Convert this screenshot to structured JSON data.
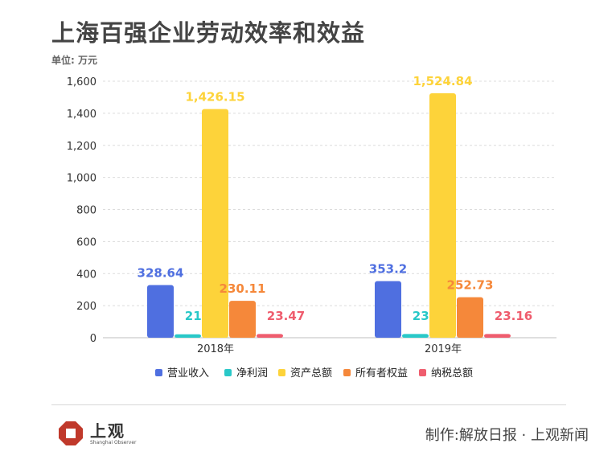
{
  "header": {
    "title": "上海百强企业劳动效率和效益",
    "unit": "单位: 万元"
  },
  "footer": {
    "logo_text": "上观",
    "logo_sub": "Shanghai Observer",
    "credit": "制作:解放日报 · 上观新闻"
  },
  "colors": {
    "series": [
      "#4f6fe0",
      "#29c8c8",
      "#fdd33a",
      "#f5883a",
      "#ef5d6e"
    ],
    "logo": "#c0392b"
  },
  "chart_data": {
    "type": "bar",
    "categories": [
      "2018年",
      "2019年"
    ],
    "series": [
      {
        "name": "营业收入",
        "values": [
          328.64,
          353.2
        ],
        "labels": [
          "328.64",
          "353.2"
        ]
      },
      {
        "name": "净利润",
        "values": [
          21.26,
          23.04
        ],
        "labels": [
          "21.26",
          "23.04"
        ]
      },
      {
        "name": "资产总额",
        "values": [
          1426.15,
          1524.84
        ],
        "labels": [
          "1,426.15",
          "1,524.84"
        ]
      },
      {
        "name": "所有者权益",
        "values": [
          230.11,
          252.73
        ],
        "labels": [
          "230.11",
          "252.73"
        ]
      },
      {
        "name": "纳税总额",
        "values": [
          23.47,
          23.16
        ],
        "labels": [
          "23.47",
          "23.16"
        ]
      }
    ],
    "yticks": [
      "0",
      "200",
      "400",
      "600",
      "800",
      "1,000",
      "1,200",
      "1,400",
      "1,600"
    ],
    "ylim": [
      0,
      1600
    ],
    "grid": true,
    "legend": "bottom"
  }
}
